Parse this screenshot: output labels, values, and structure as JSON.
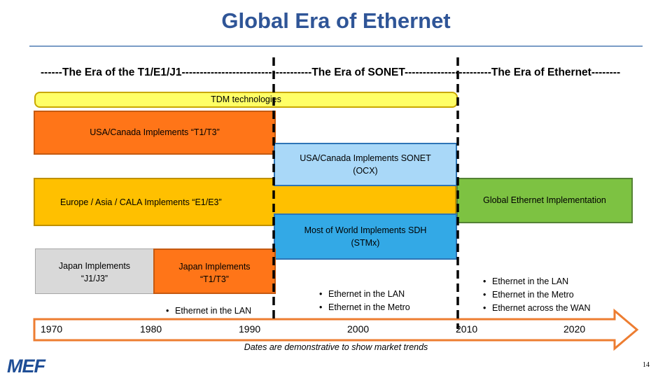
{
  "slide": {
    "title": "Global Era of Ethernet",
    "era_line": "------The Era of the T1/E1/J1------------------------------------The Era of SONET------------------------The Era of Ethernet--------",
    "caption": "Dates are demonstrative to show market trends",
    "page_number": "14",
    "logo": "MEF"
  },
  "boxes": {
    "tdm": "TDM technologies",
    "us_t1": "USA/Canada Implements  “T1/T3”",
    "us_sonet": "USA/Canada Implements  SONET\n(OCX)",
    "europe": "Europe / Asia / CALA Implements “E1/E3”",
    "global_ethernet": "Global Ethernet Implementation",
    "sdh": "Most of World Implements  SDH\n(STMx)",
    "japan_j1": "Japan Implements\n“J1/J3”",
    "japan_t1": "Japan Implements\n“T1/T3”"
  },
  "bullets": {
    "b1990": [
      "Ethernet in the LAN"
    ],
    "b2000": [
      "Ethernet in the LAN",
      "Ethernet in the Metro"
    ],
    "b2010": [
      "Ethernet in the LAN",
      "Ethernet in the Metro",
      "Ethernet across the WAN"
    ]
  },
  "timeline": [
    "1970",
    "1980",
    "1990",
    "2000",
    "2010",
    "2020"
  ],
  "colors": {
    "title": "#2F5597",
    "tdm": "#FFFF66",
    "t1": "#FF7518",
    "sonet": "#A9D8F8",
    "europe": "#FFC000",
    "ethernet": "#7DC242",
    "sdh": "#33A9E6",
    "japan_j1": "#D9D9D9",
    "arrow_border": "#ED7D31"
  }
}
